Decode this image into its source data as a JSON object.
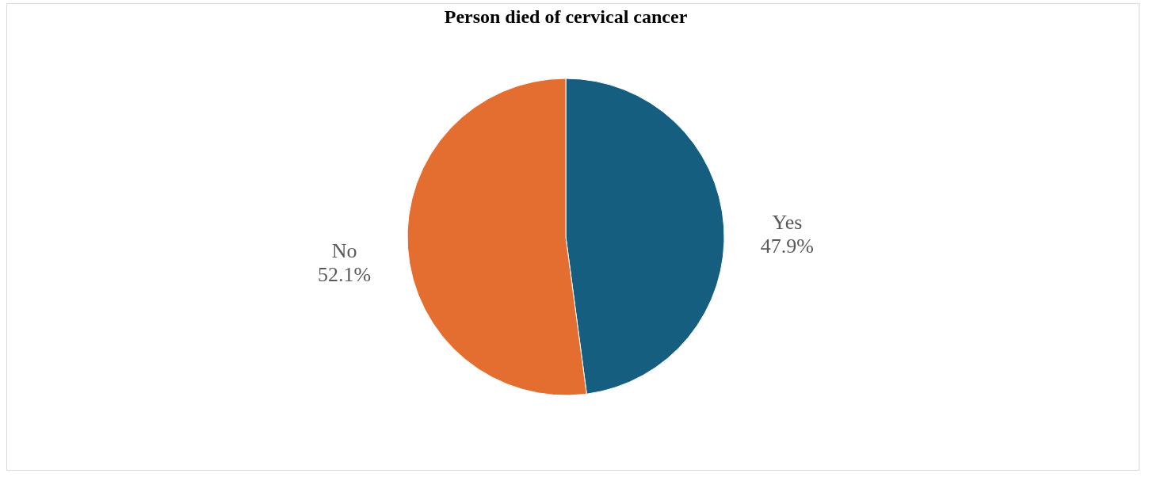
{
  "chart_data": {
    "type": "pie",
    "title": "Person  died of cervical cancer",
    "categories": [
      "Yes",
      "No"
    ],
    "values": [
      47.9,
      52.1
    ],
    "colors": [
      "#165e80",
      "#e46e2f"
    ],
    "value_labels": [
      "47.9%",
      "52.1%"
    ],
    "legend": false
  }
}
